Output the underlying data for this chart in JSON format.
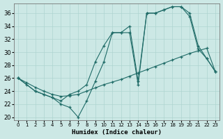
{
  "xlabel": "Humidex (Indice chaleur)",
  "xlim": [
    -0.5,
    23.5
  ],
  "ylim": [
    19.5,
    37.5
  ],
  "yticks": [
    20,
    22,
    24,
    26,
    28,
    30,
    32,
    34,
    36
  ],
  "xticks": [
    0,
    1,
    2,
    3,
    4,
    5,
    6,
    7,
    8,
    9,
    10,
    11,
    12,
    13,
    14,
    15,
    16,
    17,
    18,
    19,
    20,
    21,
    22,
    23
  ],
  "bg_color": "#cce8e5",
  "line_color": "#1f6b67",
  "grid_color": "#aed4d0",
  "line1_x": [
    0,
    1,
    2,
    3,
    4,
    5,
    6,
    7,
    8,
    9,
    10,
    11,
    12,
    13,
    14,
    15,
    16,
    17,
    18,
    19,
    20,
    21,
    22,
    23
  ],
  "line1_y": [
    26,
    25,
    24,
    23.5,
    23,
    22.5,
    23.5,
    24,
    25,
    28.5,
    31,
    33,
    33,
    34,
    25.5,
    36,
    36,
    36.5,
    37,
    37,
    35.5,
    30.5,
    29,
    27
  ],
  "line2_x": [
    0,
    2,
    3,
    4,
    5,
    6,
    7,
    8,
    9,
    10,
    11,
    12,
    13,
    14,
    15,
    16,
    17,
    18,
    19,
    20,
    21,
    22,
    23
  ],
  "line2_y": [
    26,
    24,
    23.5,
    23,
    22,
    21.5,
    20,
    22.5,
    25.5,
    28.5,
    33,
    33,
    33,
    25,
    36,
    36,
    36.5,
    37,
    37,
    36,
    31,
    29,
    27
  ],
  "line3_x": [
    0,
    1,
    2,
    3,
    4,
    5,
    6,
    7,
    8,
    9,
    10,
    11,
    12,
    13,
    14,
    15,
    16,
    17,
    18,
    19,
    20,
    21,
    22,
    23
  ],
  "line3_y": [
    26,
    25.3,
    24.6,
    24,
    23.5,
    23.2,
    23.3,
    23.5,
    24,
    24.5,
    25,
    25.4,
    25.8,
    26.3,
    26.8,
    27.3,
    27.8,
    28.3,
    28.8,
    29.3,
    29.8,
    30.2,
    30.6,
    27
  ]
}
